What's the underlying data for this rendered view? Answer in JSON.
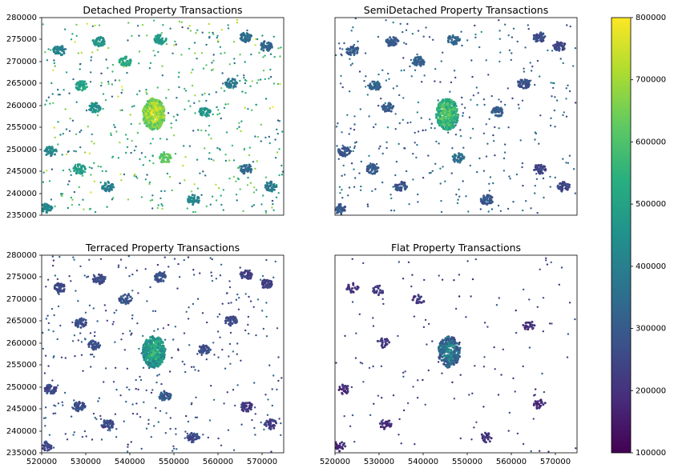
{
  "figure": {
    "panels": [
      {
        "id": "detached",
        "title": "Detached Property Transactions"
      },
      {
        "id": "semidetached",
        "title": "SemiDetached Property Transactions"
      },
      {
        "id": "terraced",
        "title": "Terraced Property Transactions"
      },
      {
        "id": "flat",
        "title": "Flat Property Transactions"
      }
    ],
    "x_ticks": [
      "520000",
      "530000",
      "540000",
      "550000",
      "560000",
      "570000"
    ],
    "y_ticks": [
      "235000",
      "240000",
      "245000",
      "250000",
      "255000",
      "260000",
      "265000",
      "270000",
      "275000",
      "280000"
    ],
    "colorbar_ticks": [
      "100000",
      "200000",
      "300000",
      "400000",
      "500000",
      "600000",
      "700000",
      "800000"
    ]
  },
  "chart_data": {
    "type": "scatter",
    "colormap": "viridis",
    "color_range": [
      100000,
      800000
    ],
    "xlim": [
      520000,
      575000
    ],
    "ylim": [
      235000,
      280000
    ],
    "grid": false,
    "colorbar": "right",
    "panels": [
      {
        "title": "Detached Property Transactions",
        "show_x_ticks": false,
        "show_y_ticks": true,
        "dense_cluster": {
          "x": 545500,
          "y": 258000,
          "value": 760000
        },
        "clusters": [
          {
            "x": 524000,
            "y": 272500,
            "value": 420000
          },
          {
            "x": 533000,
            "y": 274500,
            "value": 460000
          },
          {
            "x": 547000,
            "y": 275000,
            "value": 480000
          },
          {
            "x": 566500,
            "y": 275500,
            "value": 350000
          },
          {
            "x": 571000,
            "y": 273500,
            "value": 330000
          },
          {
            "x": 563000,
            "y": 265000,
            "value": 380000
          },
          {
            "x": 532000,
            "y": 259500,
            "value": 450000
          },
          {
            "x": 522000,
            "y": 249500,
            "value": 420000
          },
          {
            "x": 528500,
            "y": 245500,
            "value": 480000
          },
          {
            "x": 535000,
            "y": 241500,
            "value": 400000
          },
          {
            "x": 548000,
            "y": 248000,
            "value": 620000
          },
          {
            "x": 554500,
            "y": 238500,
            "value": 420000
          },
          {
            "x": 566500,
            "y": 245500,
            "value": 340000
          },
          {
            "x": 572000,
            "y": 241500,
            "value": 380000
          },
          {
            "x": 521000,
            "y": 236500,
            "value": 430000
          },
          {
            "x": 539000,
            "y": 270000,
            "value": 520000
          },
          {
            "x": 557000,
            "y": 258500,
            "value": 460000
          },
          {
            "x": 529000,
            "y": 264500,
            "value": 500000
          }
        ]
      },
      {
        "title": "SemiDetached Property Transactions",
        "show_x_ticks": false,
        "show_y_ticks": false,
        "dense_cluster": {
          "x": 545500,
          "y": 258000,
          "value": 640000
        },
        "clusters": [
          {
            "x": 524000,
            "y": 272500,
            "value": 300000
          },
          {
            "x": 533000,
            "y": 274500,
            "value": 300000
          },
          {
            "x": 547000,
            "y": 275000,
            "value": 330000
          },
          {
            "x": 566500,
            "y": 275500,
            "value": 260000
          },
          {
            "x": 571000,
            "y": 273500,
            "value": 250000
          },
          {
            "x": 563000,
            "y": 265000,
            "value": 280000
          },
          {
            "x": 532000,
            "y": 259500,
            "value": 310000
          },
          {
            "x": 522000,
            "y": 249500,
            "value": 290000
          },
          {
            "x": 528500,
            "y": 245500,
            "value": 300000
          },
          {
            "x": 535000,
            "y": 241500,
            "value": 280000
          },
          {
            "x": 548000,
            "y": 248000,
            "value": 360000
          },
          {
            "x": 554500,
            "y": 238500,
            "value": 290000
          },
          {
            "x": 566500,
            "y": 245500,
            "value": 230000
          },
          {
            "x": 572000,
            "y": 241500,
            "value": 250000
          },
          {
            "x": 521000,
            "y": 236500,
            "value": 290000
          },
          {
            "x": 539000,
            "y": 270000,
            "value": 320000
          },
          {
            "x": 557000,
            "y": 258500,
            "value": 300000
          },
          {
            "x": 529000,
            "y": 264500,
            "value": 320000
          }
        ]
      },
      {
        "title": "Terraced Property Transactions",
        "show_x_ticks": true,
        "show_y_ticks": true,
        "dense_cluster": {
          "x": 545500,
          "y": 258000,
          "value": 560000
        },
        "clusters": [
          {
            "x": 524000,
            "y": 272500,
            "value": 260000
          },
          {
            "x": 533000,
            "y": 274500,
            "value": 260000
          },
          {
            "x": 547000,
            "y": 275000,
            "value": 280000
          },
          {
            "x": 566500,
            "y": 275500,
            "value": 230000
          },
          {
            "x": 571000,
            "y": 273500,
            "value": 220000
          },
          {
            "x": 563000,
            "y": 265000,
            "value": 250000
          },
          {
            "x": 532000,
            "y": 259500,
            "value": 270000
          },
          {
            "x": 522000,
            "y": 249500,
            "value": 250000
          },
          {
            "x": 528500,
            "y": 245500,
            "value": 260000
          },
          {
            "x": 535000,
            "y": 241500,
            "value": 250000
          },
          {
            "x": 548000,
            "y": 248000,
            "value": 300000
          },
          {
            "x": 554500,
            "y": 238500,
            "value": 260000
          },
          {
            "x": 566500,
            "y": 245500,
            "value": 210000
          },
          {
            "x": 572000,
            "y": 241500,
            "value": 220000
          },
          {
            "x": 521000,
            "y": 236500,
            "value": 250000
          },
          {
            "x": 539000,
            "y": 270000,
            "value": 280000
          },
          {
            "x": 557000,
            "y": 258500,
            "value": 260000
          },
          {
            "x": 529000,
            "y": 264500,
            "value": 270000
          }
        ]
      },
      {
        "title": "Flat Property Transactions",
        "show_x_ticks": true,
        "show_y_ticks": false,
        "dense_cluster": {
          "x": 546000,
          "y": 258000,
          "value": 430000
        },
        "clusters": [
          {
            "x": 524000,
            "y": 272500,
            "value": 200000
          },
          {
            "x": 530000,
            "y": 272000,
            "value": 200000
          },
          {
            "x": 564000,
            "y": 264000,
            "value": 190000
          },
          {
            "x": 531000,
            "y": 260000,
            "value": 210000
          },
          {
            "x": 522000,
            "y": 249500,
            "value": 190000
          },
          {
            "x": 531500,
            "y": 241500,
            "value": 200000
          },
          {
            "x": 554500,
            "y": 238500,
            "value": 210000
          },
          {
            "x": 566500,
            "y": 246000,
            "value": 180000
          },
          {
            "x": 521000,
            "y": 236500,
            "value": 190000
          },
          {
            "x": 539000,
            "y": 270000,
            "value": 210000
          }
        ]
      }
    ]
  }
}
